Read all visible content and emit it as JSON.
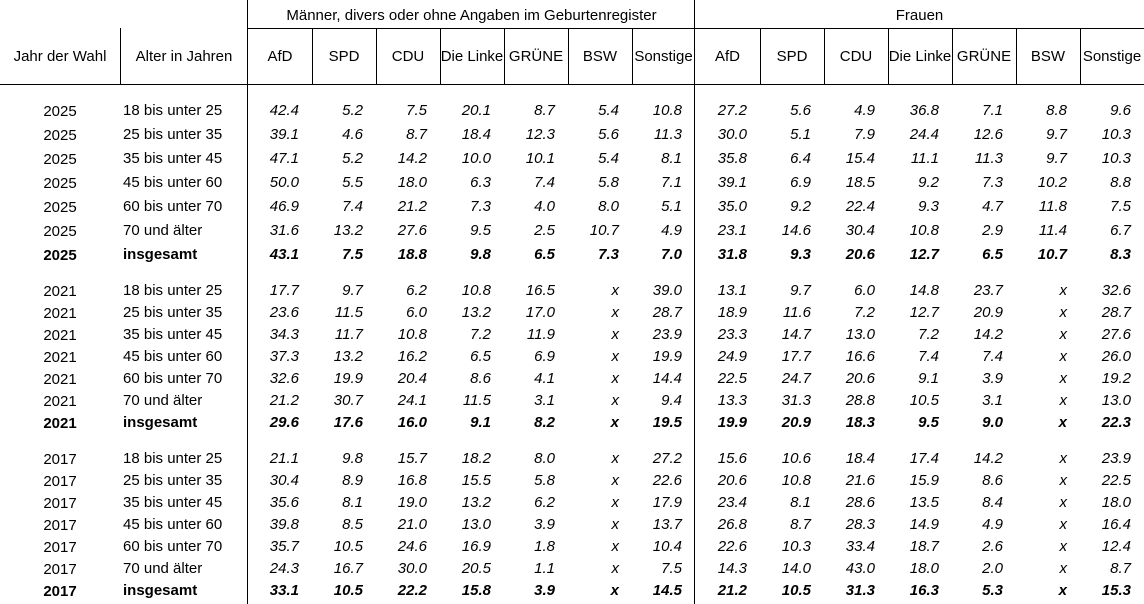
{
  "table": {
    "group_headers": [
      "Männer, divers oder ohne Angaben im Geburtenregister",
      "Frauen"
    ],
    "col_headers": [
      "Jahr der Wahl",
      "Alter in Jahren"
    ],
    "party_headers": [
      "AfD",
      "SPD",
      "CDU",
      "Die Linke",
      "GRÜNE",
      "BSW",
      "Sonstige"
    ],
    "sections": [
      {
        "rows": [
          {
            "year": "2025",
            "age": "18 bis unter 25",
            "men": [
              "42.4",
              "5.2",
              "7.5",
              "20.1",
              "8.7",
              "5.4",
              "10.8"
            ],
            "women": [
              "27.2",
              "5.6",
              "4.9",
              "36.8",
              "7.1",
              "8.8",
              "9.6"
            ]
          },
          {
            "year": "2025",
            "age": "25 bis unter 35",
            "men": [
              "39.1",
              "4.6",
              "8.7",
              "18.4",
              "12.3",
              "5.6",
              "11.3"
            ],
            "women": [
              "30.0",
              "5.1",
              "7.9",
              "24.4",
              "12.6",
              "9.7",
              "10.3"
            ]
          },
          {
            "year": "2025",
            "age": "35 bis unter 45",
            "men": [
              "47.1",
              "5.2",
              "14.2",
              "10.0",
              "10.1",
              "5.4",
              "8.1"
            ],
            "women": [
              "35.8",
              "6.4",
              "15.4",
              "11.1",
              "11.3",
              "9.7",
              "10.3"
            ]
          },
          {
            "year": "2025",
            "age": "45 bis unter 60",
            "men": [
              "50.0",
              "5.5",
              "18.0",
              "6.3",
              "7.4",
              "5.8",
              "7.1"
            ],
            "women": [
              "39.1",
              "6.9",
              "18.5",
              "9.2",
              "7.3",
              "10.2",
              "8.8"
            ]
          },
          {
            "year": "2025",
            "age": "60 bis unter 70",
            "men": [
              "46.9",
              "7.4",
              "21.2",
              "7.3",
              "4.0",
              "8.0",
              "5.1"
            ],
            "women": [
              "35.0",
              "9.2",
              "22.4",
              "9.3",
              "4.7",
              "11.8",
              "7.5"
            ]
          },
          {
            "year": "2025",
            "age": "70 und älter",
            "men": [
              "31.6",
              "13.2",
              "27.6",
              "9.5",
              "2.5",
              "10.7",
              "4.9"
            ],
            "women": [
              "23.1",
              "14.6",
              "30.4",
              "10.8",
              "2.9",
              "11.4",
              "6.7"
            ]
          },
          {
            "year": "2025",
            "age": "insgesamt",
            "men": [
              "43.1",
              "7.5",
              "18.8",
              "9.8",
              "6.5",
              "7.3",
              "7.0"
            ],
            "women": [
              "31.8",
              "9.3",
              "20.6",
              "12.7",
              "6.5",
              "10.7",
              "8.3"
            ]
          }
        ]
      },
      {
        "rows": [
          {
            "year": "2021",
            "age": "18 bis unter 25",
            "men": [
              "17.7",
              "9.7",
              "6.2",
              "10.8",
              "16.5",
              "x",
              "39.0"
            ],
            "women": [
              "13.1",
              "9.7",
              "6.0",
              "14.8",
              "23.7",
              "x",
              "32.6"
            ]
          },
          {
            "year": "2021",
            "age": "25 bis unter 35",
            "men": [
              "23.6",
              "11.5",
              "6.0",
              "13.2",
              "17.0",
              "x",
              "28.7"
            ],
            "women": [
              "18.9",
              "11.6",
              "7.2",
              "12.7",
              "20.9",
              "x",
              "28.7"
            ]
          },
          {
            "year": "2021",
            "age": "35 bis unter 45",
            "men": [
              "34.3",
              "11.7",
              "10.8",
              "7.2",
              "11.9",
              "x",
              "23.9"
            ],
            "women": [
              "23.3",
              "14.7",
              "13.0",
              "7.2",
              "14.2",
              "x",
              "27.6"
            ]
          },
          {
            "year": "2021",
            "age": "45 bis unter 60",
            "men": [
              "37.3",
              "13.2",
              "16.2",
              "6.5",
              "6.9",
              "x",
              "19.9"
            ],
            "women": [
              "24.9",
              "17.7",
              "16.6",
              "7.4",
              "7.4",
              "x",
              "26.0"
            ]
          },
          {
            "year": "2021",
            "age": "60 bis unter 70",
            "men": [
              "32.6",
              "19.9",
              "20.4",
              "8.6",
              "4.1",
              "x",
              "14.4"
            ],
            "women": [
              "22.5",
              "24.7",
              "20.6",
              "9.1",
              "3.9",
              "x",
              "19.2"
            ]
          },
          {
            "year": "2021",
            "age": "70 und älter",
            "men": [
              "21.2",
              "30.7",
              "24.1",
              "11.5",
              "3.1",
              "x",
              "9.4"
            ],
            "women": [
              "13.3",
              "31.3",
              "28.8",
              "10.5",
              "3.1",
              "x",
              "13.0"
            ]
          },
          {
            "year": "2021",
            "age": "insgesamt",
            "men": [
              "29.6",
              "17.6",
              "16.0",
              "9.1",
              "8.2",
              "x",
              "19.5"
            ],
            "women": [
              "19.9",
              "20.9",
              "18.3",
              "9.5",
              "9.0",
              "x",
              "22.3"
            ]
          }
        ]
      },
      {
        "rows": [
          {
            "year": "2017",
            "age": "18 bis unter 25",
            "men": [
              "21.1",
              "9.8",
              "15.7",
              "18.2",
              "8.0",
              "x",
              "27.2"
            ],
            "women": [
              "15.6",
              "10.6",
              "18.4",
              "17.4",
              "14.2",
              "x",
              "23.9"
            ]
          },
          {
            "year": "2017",
            "age": "25 bis unter 35",
            "men": [
              "30.4",
              "8.9",
              "16.8",
              "15.5",
              "5.8",
              "x",
              "22.6"
            ],
            "women": [
              "20.6",
              "10.8",
              "21.6",
              "15.9",
              "8.6",
              "x",
              "22.5"
            ]
          },
          {
            "year": "2017",
            "age": "35 bis unter 45",
            "men": [
              "35.6",
              "8.1",
              "19.0",
              "13.2",
              "6.2",
              "x",
              "17.9"
            ],
            "women": [
              "23.4",
              "8.1",
              "28.6",
              "13.5",
              "8.4",
              "x",
              "18.0"
            ]
          },
          {
            "year": "2017",
            "age": "45 bis unter 60",
            "men": [
              "39.8",
              "8.5",
              "21.0",
              "13.0",
              "3.9",
              "x",
              "13.7"
            ],
            "women": [
              "26.8",
              "8.7",
              "28.3",
              "14.9",
              "4.9",
              "x",
              "16.4"
            ]
          },
          {
            "year": "2017",
            "age": "60 bis unter 70",
            "men": [
              "35.7",
              "10.5",
              "24.6",
              "16.9",
              "1.8",
              "x",
              "10.4"
            ],
            "women": [
              "22.6",
              "10.3",
              "33.4",
              "18.7",
              "2.6",
              "x",
              "12.4"
            ]
          },
          {
            "year": "2017",
            "age": "70 und älter",
            "men": [
              "24.3",
              "16.7",
              "30.0",
              "20.5",
              "1.1",
              "x",
              "7.5"
            ],
            "women": [
              "14.3",
              "14.0",
              "43.0",
              "18.0",
              "2.0",
              "x",
              "8.7"
            ]
          },
          {
            "year": "2017",
            "age": "insgesamt",
            "men": [
              "33.1",
              "10.5",
              "22.2",
              "15.8",
              "3.9",
              "x",
              "14.5"
            ],
            "women": [
              "21.2",
              "10.5",
              "31.3",
              "16.3",
              "5.3",
              "x",
              "15.3"
            ]
          }
        ]
      }
    ]
  }
}
